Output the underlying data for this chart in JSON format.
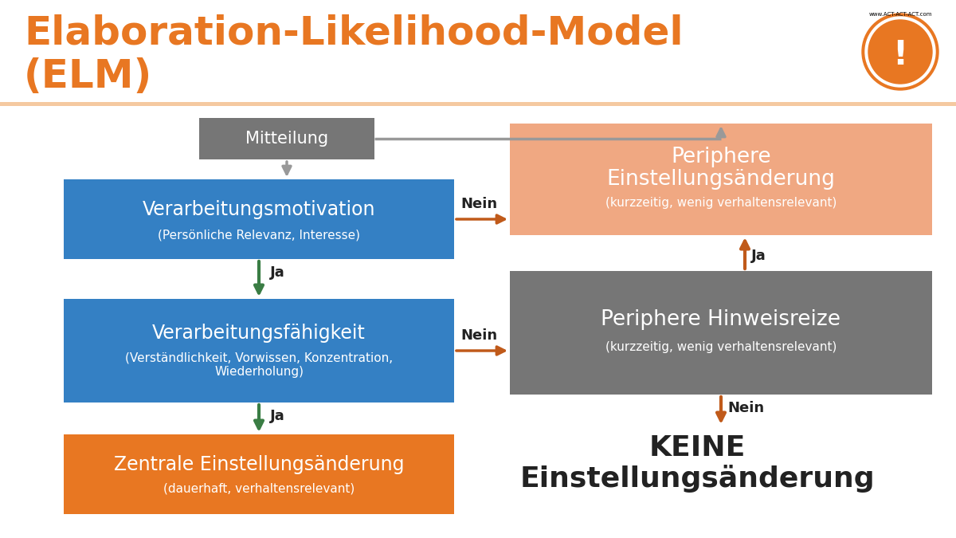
{
  "title_line1": "Elaboration-Likelihood-Model",
  "title_line2": "(ELM)",
  "title_color": "#E87722",
  "bg_color": "#FFFFFF",
  "divider_color": "#F5C9A0",
  "box_mitteilung": {
    "label": "Mitteilung",
    "color": "#767676",
    "text_color": "#FFFFFF"
  },
  "box_motivation": {
    "label": "Verarbeitungsmotivation",
    "sublabel": "(Persönliche Relevanz, Interesse)",
    "color": "#3480C4",
    "text_color": "#FFFFFF"
  },
  "box_faehigkeit": {
    "label": "Verarbeitungsfähigkeit",
    "sublabel": "(Verständlichkeit, Vorwissen, Konzentration,\nWiederholung)",
    "color": "#3480C4",
    "text_color": "#FFFFFF"
  },
  "box_zentral": {
    "label": "Zentrale Einstellungsänderung",
    "sublabel": "(dauerhaft, verhaltensrelevant)",
    "color": "#E87722",
    "text_color": "#FFFFFF"
  },
  "box_periphere_einstellung": {
    "label_line1": "Periphere",
    "label_line2": "Einstellungsänderung",
    "sublabel": "(kurzzeitig, wenig verhaltensrelevant)",
    "color": "#F0A882",
    "text_color": "#FFFFFF"
  },
  "box_periphere_hinweis": {
    "label": "Periphere Hinweisreize",
    "sublabel": "(kurzzeitig, wenig verhaltensrelevant)",
    "color": "#767676",
    "text_color": "#FFFFFF"
  },
  "box_keine": {
    "label_line1": "KEINE",
    "label_line2": "Einstellungsänderung",
    "text_color": "#222222"
  },
  "arrow_gray": "#999999",
  "arrow_green": "#3A7D44",
  "arrow_orange": "#C05A1A",
  "label_nein_color": "#222222",
  "label_ja_color": "#222222"
}
